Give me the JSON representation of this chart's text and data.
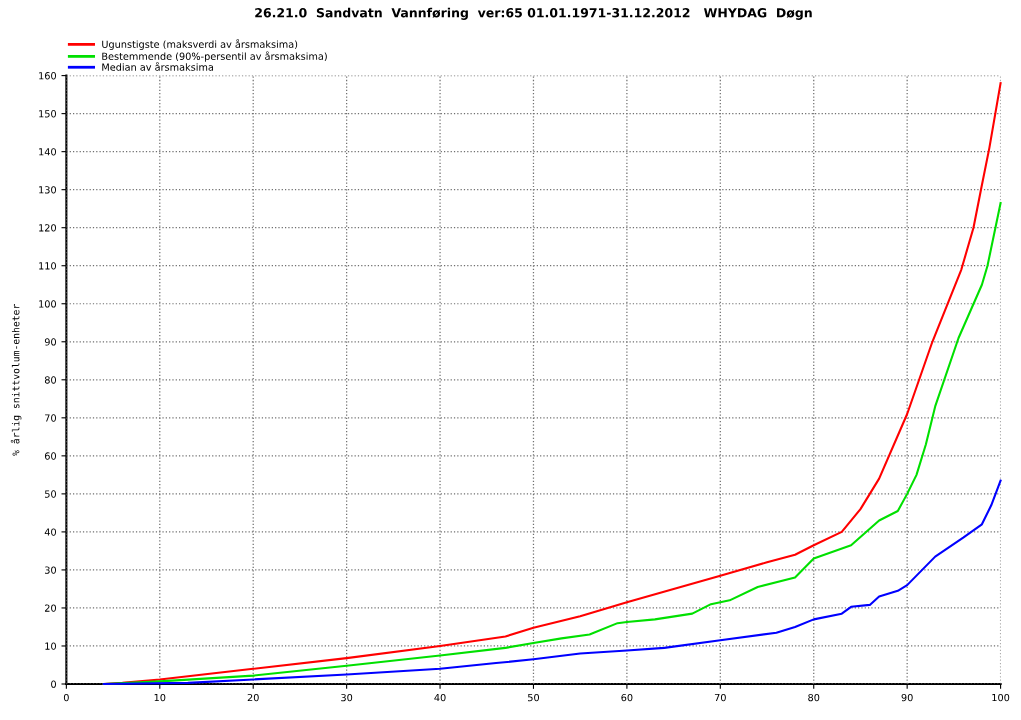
{
  "chart_data": {
    "type": "line",
    "title": "26.21.0  Sandvatn  Vannføring  ver:65 01.01.1971-31.12.2012   WHYDAG  Døgn",
    "ylabel": "% årlig snittvolum-enheter",
    "xlim": [
      0,
      100
    ],
    "ylim": [
      0,
      160
    ],
    "xticks": [
      0,
      10,
      20,
      30,
      40,
      50,
      60,
      70,
      80,
      90,
      100
    ],
    "yticks": [
      0,
      10,
      20,
      30,
      40,
      50,
      60,
      70,
      80,
      90,
      100,
      110,
      120,
      130,
      140,
      150,
      160
    ],
    "grid": true,
    "legend": "top left",
    "line_style": "solid",
    "marker": "none",
    "series": [
      {
        "name": "Ugunstigste (maksverdi av årsmaksima)",
        "color": "#ff0000",
        "x": [
          4,
          6,
          10,
          20,
          30,
          40,
          47,
          50,
          55,
          60,
          65,
          70,
          75,
          78,
          80,
          83,
          85,
          87,
          90,
          92.7,
          95.8,
          97.1,
          97.9,
          98.8,
          100
        ],
        "values": [
          0,
          0.3,
          1.2,
          4,
          6.8,
          10,
          12.5,
          14.8,
          17.8,
          21.5,
          25,
          28.5,
          32,
          34,
          36.5,
          40,
          46,
          54,
          71,
          90,
          109,
          120,
          130,
          141,
          158
        ]
      },
      {
        "name": "Bestemmende (90%-persentil av årsmaksima)",
        "color": "#00e000",
        "x": [
          4,
          10,
          20,
          30,
          40,
          47,
          50,
          53,
          56,
          59,
          60,
          63,
          67,
          69,
          71,
          74,
          78,
          80,
          84,
          87,
          89,
          90,
          91,
          92,
          93,
          95.5,
          98,
          98.6,
          100
        ],
        "values": [
          0,
          0.7,
          2.2,
          4.8,
          7.5,
          9.5,
          10.8,
          12,
          13,
          16,
          16.3,
          17,
          18.5,
          21,
          22,
          25.5,
          28,
          33,
          36.5,
          43,
          45.5,
          50,
          55,
          63,
          73,
          91,
          105,
          110,
          126.5
        ]
      },
      {
        "name": "Median av årsmaksima",
        "color": "#0000ff",
        "x": [
          4,
          13,
          20,
          30,
          40,
          46,
          50,
          55,
          60,
          64,
          70,
          76,
          78,
          80,
          83,
          84,
          86,
          87,
          89,
          90,
          91,
          93,
          96,
          98,
          99,
          100
        ],
        "values": [
          0,
          0.3,
          1.2,
          2.5,
          4,
          5.5,
          6.5,
          8,
          8.8,
          9.5,
          11.5,
          13.5,
          15,
          17,
          18.5,
          20.3,
          20.8,
          23,
          24.5,
          26,
          28.5,
          33.5,
          38.5,
          42,
          47,
          53.5
        ]
      }
    ]
  }
}
